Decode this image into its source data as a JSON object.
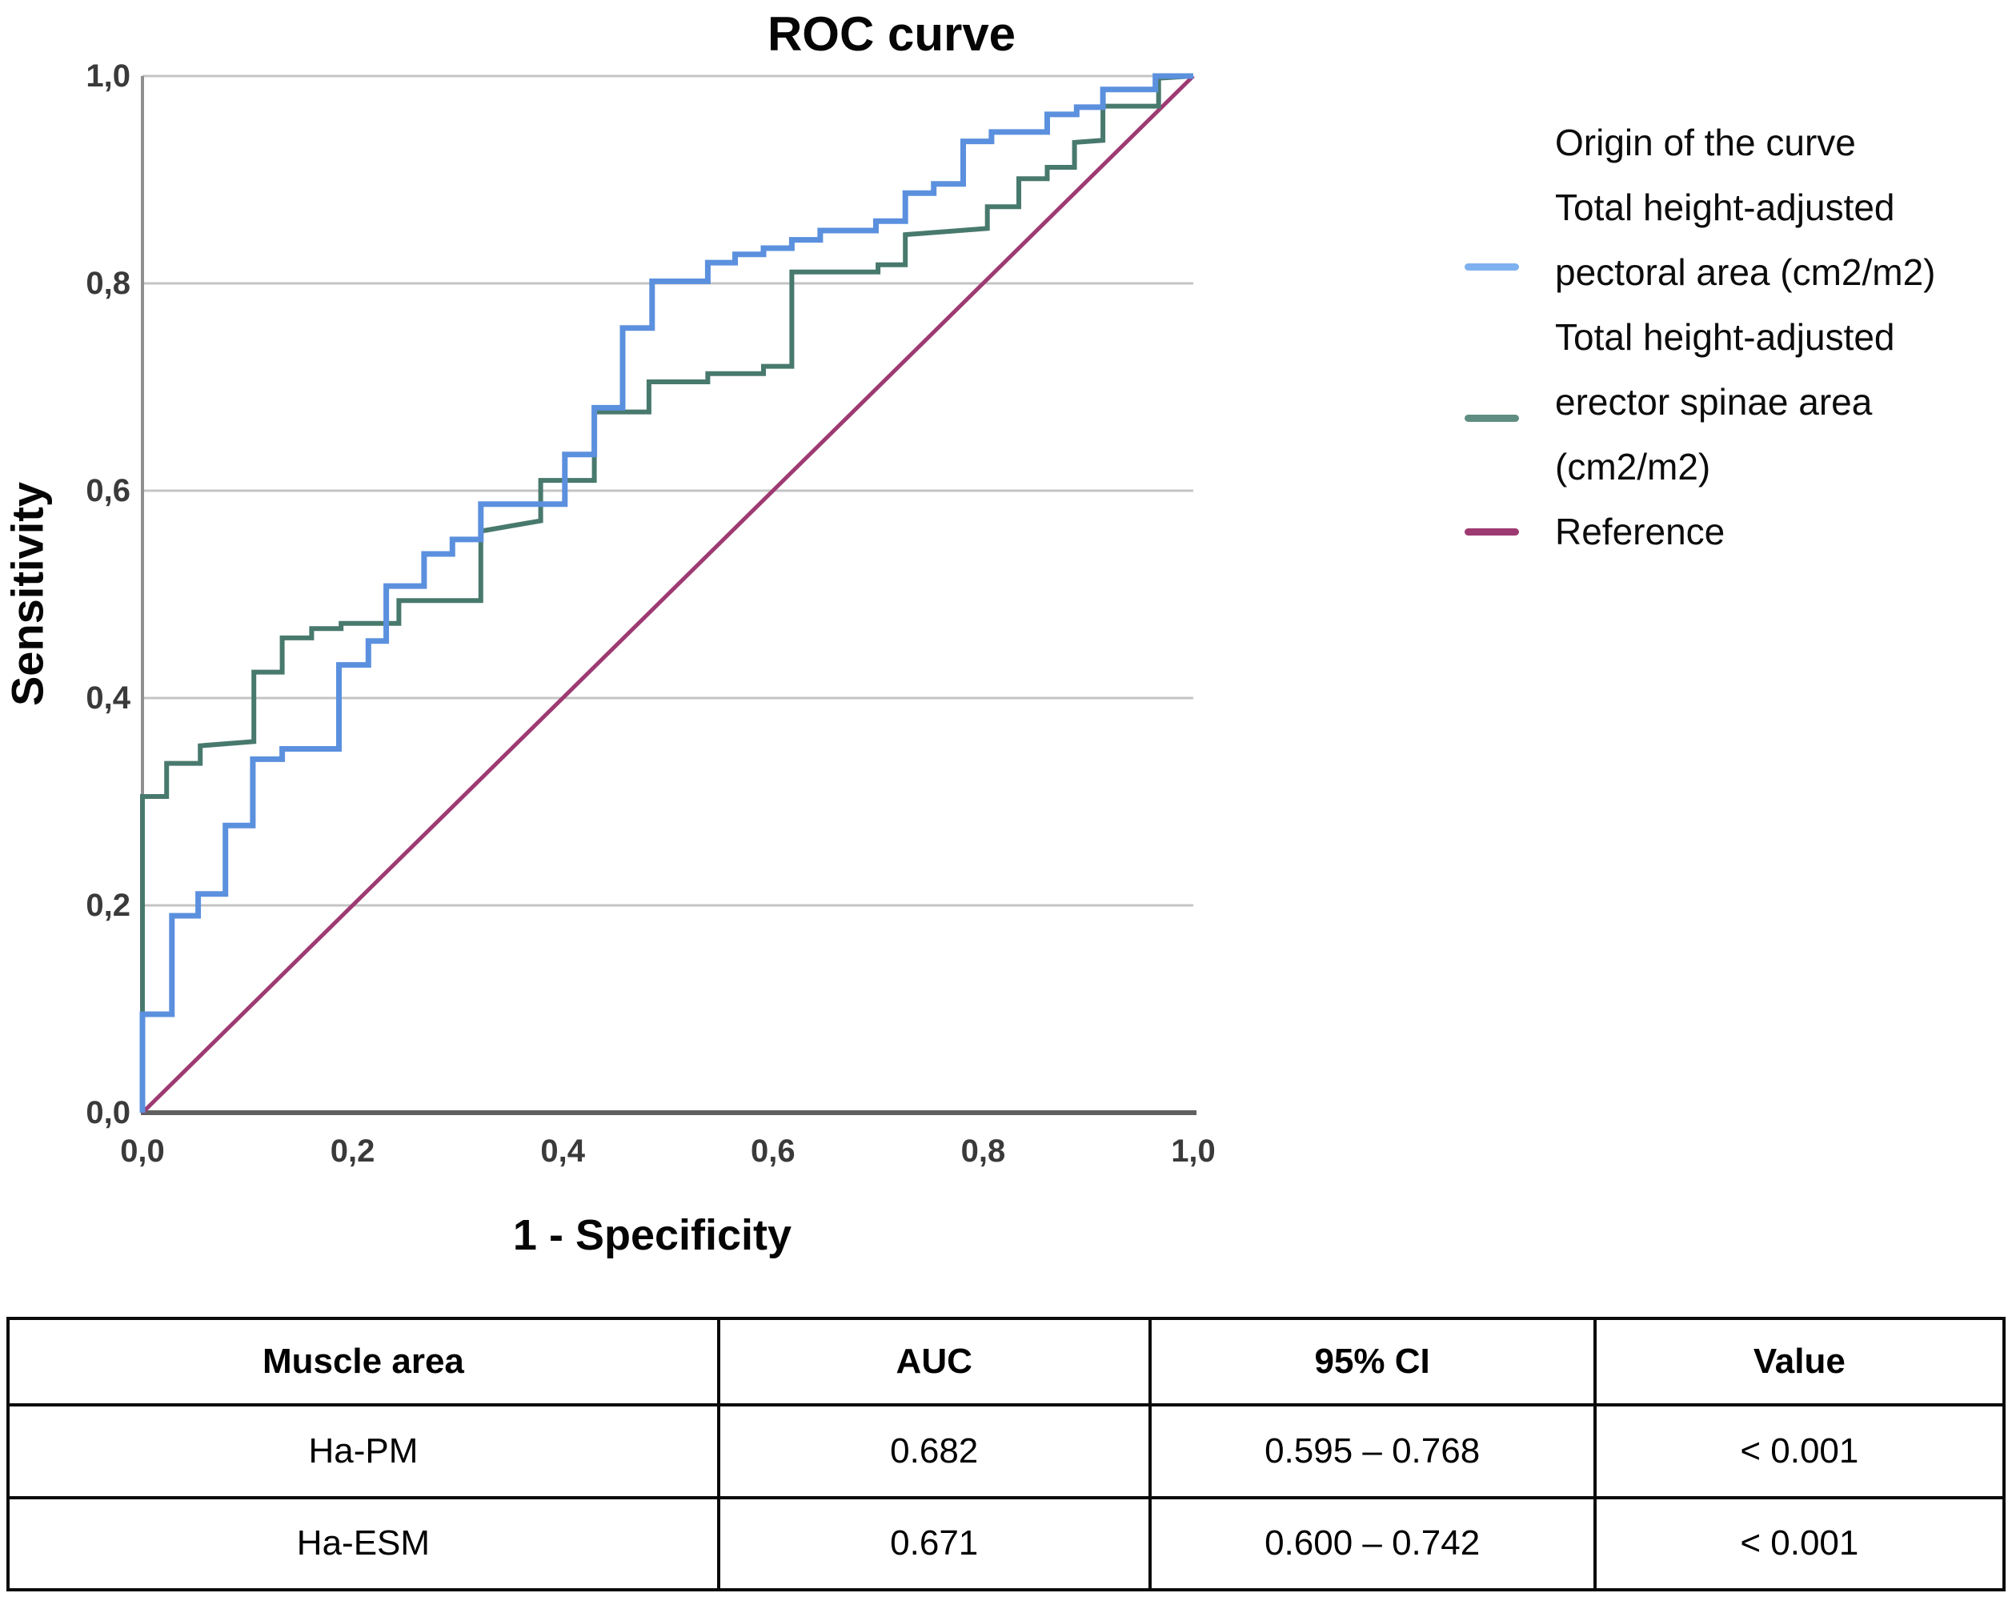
{
  "title": "ROC curve",
  "axes": {
    "x_label": "1 - Specificity",
    "y_label": "Sensitivity",
    "x_ticks": [
      "0,0",
      "0,2",
      "0,4",
      "0,6",
      "0,8",
      "1,0"
    ],
    "y_ticks": [
      "0,0",
      "0,2",
      "0,4",
      "0,6",
      "0,8",
      "1,0"
    ],
    "tick_values": [
      0,
      0.2,
      0.4,
      0.6,
      0.8,
      1.0
    ]
  },
  "legend": {
    "heading": "Origin of the curve",
    "entries": [
      {
        "label_lines": [
          "Total height-adjusted",
          "pectoral area (cm2/m2)"
        ],
        "color": "#7fb1f0"
      },
      {
        "label_lines": [
          "Total height-adjusted",
          "erector spinae area",
          "(cm2/m2)"
        ],
        "color": "#5f8d82"
      },
      {
        "label_lines": [
          "Reference"
        ],
        "color": "#9e3a72"
      }
    ]
  },
  "chart_data": {
    "type": "line",
    "subtype": "roc-step-curves",
    "title": "ROC curve",
    "xlabel": "1 - Specificity",
    "ylabel": "Sensitivity",
    "xlim": [
      0,
      1
    ],
    "ylim": [
      0,
      1
    ],
    "grid": "horizontal gridlines at 0.2 intervals",
    "legend_position": "right",
    "series": [
      {
        "name": "Total height-adjusted pectoral area (cm2/m2)",
        "color": "#5b90de",
        "auc": 0.682,
        "points": [
          [
            0,
            0
          ],
          [
            0,
            0.095
          ],
          [
            0.028,
            0.095
          ],
          [
            0.028,
            0.19
          ],
          [
            0.053,
            0.19
          ],
          [
            0.053,
            0.211
          ],
          [
            0.079,
            0.211
          ],
          [
            0.079,
            0.277
          ],
          [
            0.105,
            0.277
          ],
          [
            0.105,
            0.341
          ],
          [
            0.133,
            0.341
          ],
          [
            0.133,
            0.351
          ],
          [
            0.187,
            0.351
          ],
          [
            0.187,
            0.432
          ],
          [
            0.215,
            0.432
          ],
          [
            0.215,
            0.455
          ],
          [
            0.232,
            0.455
          ],
          [
            0.232,
            0.508
          ],
          [
            0.268,
            0.508
          ],
          [
            0.268,
            0.539
          ],
          [
            0.295,
            0.539
          ],
          [
            0.295,
            0.553
          ],
          [
            0.322,
            0.553
          ],
          [
            0.322,
            0.587
          ],
          [
            0.402,
            0.587
          ],
          [
            0.402,
            0.635
          ],
          [
            0.43,
            0.635
          ],
          [
            0.43,
            0.68
          ],
          [
            0.457,
            0.68
          ],
          [
            0.457,
            0.757
          ],
          [
            0.485,
            0.757
          ],
          [
            0.485,
            0.802
          ],
          [
            0.538,
            0.802
          ],
          [
            0.538,
            0.82
          ],
          [
            0.564,
            0.82
          ],
          [
            0.564,
            0.828
          ],
          [
            0.591,
            0.828
          ],
          [
            0.591,
            0.834
          ],
          [
            0.618,
            0.834
          ],
          [
            0.618,
            0.842
          ],
          [
            0.645,
            0.842
          ],
          [
            0.645,
            0.851
          ],
          [
            0.698,
            0.851
          ],
          [
            0.698,
            0.86
          ],
          [
            0.726,
            0.86
          ],
          [
            0.726,
            0.887
          ],
          [
            0.753,
            0.887
          ],
          [
            0.753,
            0.896
          ],
          [
            0.781,
            0.896
          ],
          [
            0.781,
            0.937
          ],
          [
            0.808,
            0.937
          ],
          [
            0.808,
            0.946
          ],
          [
            0.861,
            0.946
          ],
          [
            0.861,
            0.963
          ],
          [
            0.889,
            0.963
          ],
          [
            0.889,
            0.97
          ],
          [
            0.914,
            0.97
          ],
          [
            0.914,
            0.987
          ],
          [
            0.964,
            0.987
          ],
          [
            0.964,
            1
          ],
          [
            1,
            1
          ]
        ]
      },
      {
        "name": "Total height-adjusted erector spinae area (cm2/m2)",
        "color": "#48796d",
        "auc": 0.671,
        "points": [
          [
            0,
            0
          ],
          [
            0,
            0.305
          ],
          [
            0.023,
            0.305
          ],
          [
            0.023,
            0.337
          ],
          [
            0.055,
            0.337
          ],
          [
            0.055,
            0.354
          ],
          [
            0.106,
            0.358
          ],
          [
            0.106,
            0.425
          ],
          [
            0.133,
            0.425
          ],
          [
            0.133,
            0.458
          ],
          [
            0.161,
            0.458
          ],
          [
            0.161,
            0.467
          ],
          [
            0.189,
            0.467
          ],
          [
            0.189,
            0.472
          ],
          [
            0.244,
            0.472
          ],
          [
            0.244,
            0.494
          ],
          [
            0.322,
            0.494
          ],
          [
            0.322,
            0.561
          ],
          [
            0.379,
            0.571
          ],
          [
            0.379,
            0.61
          ],
          [
            0.43,
            0.61
          ],
          [
            0.43,
            0.676
          ],
          [
            0.482,
            0.676
          ],
          [
            0.482,
            0.705
          ],
          [
            0.538,
            0.705
          ],
          [
            0.538,
            0.713
          ],
          [
            0.591,
            0.713
          ],
          [
            0.591,
            0.72
          ],
          [
            0.618,
            0.72
          ],
          [
            0.618,
            0.811
          ],
          [
            0.7,
            0.811
          ],
          [
            0.7,
            0.818
          ],
          [
            0.726,
            0.818
          ],
          [
            0.726,
            0.847
          ],
          [
            0.804,
            0.853
          ],
          [
            0.804,
            0.874
          ],
          [
            0.834,
            0.874
          ],
          [
            0.834,
            0.901
          ],
          [
            0.861,
            0.901
          ],
          [
            0.861,
            0.912
          ],
          [
            0.887,
            0.912
          ],
          [
            0.887,
            0.936
          ],
          [
            0.914,
            0.938
          ],
          [
            0.914,
            0.971
          ],
          [
            0.967,
            0.971
          ],
          [
            0.967,
            0.998
          ],
          [
            1,
            1
          ]
        ]
      },
      {
        "name": "Reference",
        "color": "#9e3a72",
        "points": [
          [
            0,
            0
          ],
          [
            1,
            1
          ]
        ]
      }
    ]
  },
  "table": {
    "headers": [
      "Muscle area",
      "AUC",
      "95% CI",
      "Value"
    ],
    "rows": [
      [
        "Ha-PM",
        "0.682",
        "0.595 – 0.768",
        "< 0.001"
      ],
      [
        "Ha-ESM",
        "0.671",
        "0.600 – 0.742",
        "< 0.001"
      ]
    ]
  }
}
